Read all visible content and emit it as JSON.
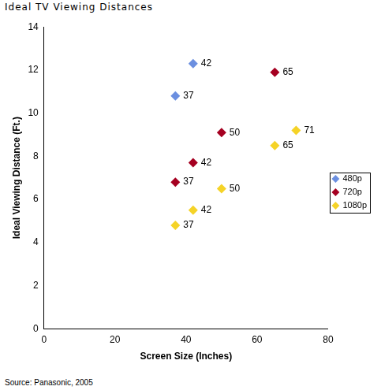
{
  "chart_data": {
    "type": "scatter",
    "title": "Ideal TV Viewing Distances",
    "source": "Source: Panasonic, 2005",
    "x_label": "Screen Size (Inches)",
    "y_label": "Ideal Viewing Distance (Ft.)",
    "series": [
      {
        "name": "480p",
        "color": "#6b8fe0",
        "x": [
          37,
          42
        ],
        "values": [
          10.8,
          12.3
        ]
      },
      {
        "name": "720p",
        "color": "#a50021",
        "x": [
          37,
          42,
          50,
          65
        ],
        "values": [
          6.8,
          7.7,
          9.1,
          11.9
        ]
      },
      {
        "name": "1080p",
        "color": "#f5d327",
        "x": [
          37,
          42,
          50,
          65,
          71
        ],
        "values": [
          4.8,
          5.5,
          6.5,
          8.5,
          9.2
        ]
      }
    ],
    "xlim": [
      0,
      80
    ],
    "xticks": [
      0,
      20,
      40,
      60,
      80
    ],
    "ylim": [
      0,
      14
    ],
    "yticks": [
      0,
      2,
      4,
      6,
      8,
      10,
      12,
      14
    ],
    "grid": false,
    "legend": "right",
    "marker": "diamond",
    "data_labels": true
  }
}
